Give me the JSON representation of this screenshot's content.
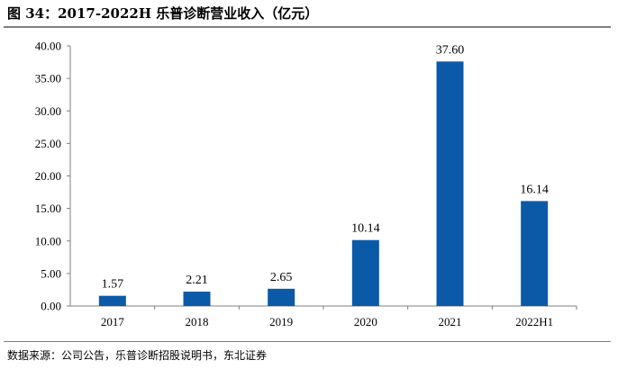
{
  "title": "图 34：2017-2022H 乐普诊断营业收入（亿元）",
  "source": "数据来源：公司公告，乐普诊断招股说明书，东北证券",
  "colors": {
    "bar": "#0b5aa8",
    "axis": "#7f7f7f"
  },
  "chart_data": {
    "type": "bar",
    "categories": [
      "2017",
      "2018",
      "2019",
      "2020",
      "2021",
      "2022H1"
    ],
    "values": [
      1.57,
      2.21,
      2.65,
      10.14,
      37.6,
      16.14
    ],
    "value_labels": [
      "1.57",
      "2.21",
      "2.65",
      "10.14",
      "37.60",
      "16.14"
    ],
    "ylim": [
      0,
      40
    ],
    "yticks": [
      "0.00",
      "5.00",
      "10.00",
      "15.00",
      "20.00",
      "25.00",
      "30.00",
      "35.00",
      "40.00"
    ],
    "grid": false,
    "legend": "none"
  }
}
